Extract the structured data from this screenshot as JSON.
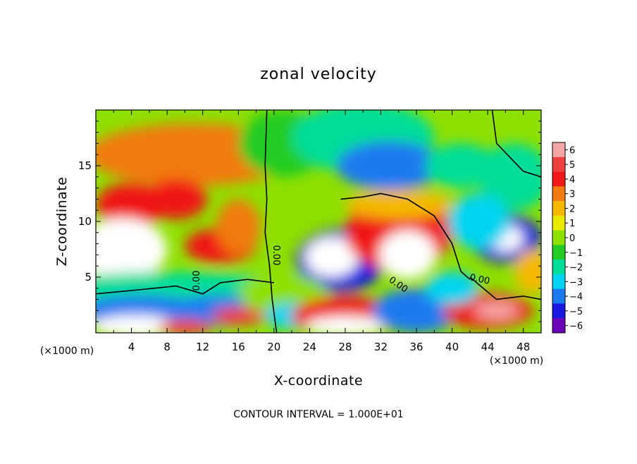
{
  "chart_data": {
    "type": "heatmap",
    "title": "zonal velocity",
    "xlabel": "X-coordinate",
    "ylabel": "Z-coordinate",
    "x_unit_label": "(×1000 m)",
    "x_unit_label_right": "(×1000 m)",
    "footer": "CONTOUR INTERVAL = 1.000E+01",
    "xlim": [
      0,
      50
    ],
    "ylim": [
      0,
      20
    ],
    "x_ticks": [
      4,
      8,
      12,
      16,
      20,
      24,
      28,
      32,
      36,
      40,
      44,
      48
    ],
    "y_ticks": [
      5,
      10,
      15
    ],
    "colorbar": {
      "ticks": [
        6,
        5,
        4,
        3,
        2,
        1,
        0,
        -1,
        -2,
        -3,
        -4,
        -5,
        -6
      ],
      "colors": [
        "#f4a6a6",
        "#ee4040",
        "#f01818",
        "#f27a10",
        "#f5b800",
        "#eaea00",
        "#8ee000",
        "#22cc22",
        "#00dd99",
        "#00d4f0",
        "#1a7af0",
        "#1818e0",
        "#6a00b8"
      ]
    },
    "contour_labels": [
      "0.00",
      "0.00",
      "0.00",
      "0.00"
    ],
    "blobs": [
      {
        "x": 11.0,
        "y": 16.0,
        "rx": 12,
        "ry": 2.8,
        "v": 3.3
      },
      {
        "x": 4.0,
        "y": 11.5,
        "rx": 4,
        "ry": 2,
        "v": 4.5
      },
      {
        "x": 9.0,
        "y": 12.0,
        "rx": 3.5,
        "ry": 1.8,
        "v": 3.8
      },
      {
        "x": 3.0,
        "y": 7.5,
        "rx": 5,
        "ry": 2.8,
        "v": 6.8
      },
      {
        "x": 14.0,
        "y": 7.8,
        "rx": 4,
        "ry": 1.6,
        "v": 3.8
      },
      {
        "x": 16.0,
        "y": 9.5,
        "rx": 2.5,
        "ry": 2.5,
        "v": 2.8
      },
      {
        "x": 21.0,
        "y": 17.0,
        "rx": 5,
        "ry": 3,
        "v": -1.0
      },
      {
        "x": 30.0,
        "y": 17.5,
        "rx": 8,
        "ry": 3.2,
        "v": -2.2
      },
      {
        "x": 33.0,
        "y": 15.0,
        "rx": 6,
        "ry": 2.2,
        "v": -3.8
      },
      {
        "x": 41.0,
        "y": 15.0,
        "rx": 4,
        "ry": 2,
        "v": -2.0
      },
      {
        "x": 47.0,
        "y": 14.0,
        "rx": 4,
        "ry": 3,
        "v": -1.8
      },
      {
        "x": 27.5,
        "y": 6.5,
        "rx": 5,
        "ry": 2.8,
        "v": -4.8
      },
      {
        "x": 26.5,
        "y": 6.8,
        "rx": 3,
        "ry": 1.8,
        "v": 7.5
      },
      {
        "x": 34.0,
        "y": 9.0,
        "rx": 6,
        "ry": 3.5,
        "v": 4.5
      },
      {
        "x": 35.0,
        "y": 7.0,
        "rx": 3.2,
        "ry": 2.2,
        "v": 7.5
      },
      {
        "x": 34.0,
        "y": 11.5,
        "rx": 6,
        "ry": 1.3,
        "v": 1.6
      },
      {
        "x": 46.0,
        "y": 8.5,
        "rx": 4,
        "ry": 2.2,
        "v": -4.8
      },
      {
        "x": 46.0,
        "y": 8.5,
        "rx": 2,
        "ry": 1.2,
        "v": 7.5
      },
      {
        "x": 43.0,
        "y": 10.0,
        "rx": 3.5,
        "ry": 2.5,
        "v": -2.5
      },
      {
        "x": 9.0,
        "y": 4.0,
        "rx": 14,
        "ry": 1.5,
        "v": -1.8
      },
      {
        "x": 5.0,
        "y": 2.0,
        "rx": 7,
        "ry": 1.4,
        "v": -4.2
      },
      {
        "x": 4.5,
        "y": 0.6,
        "rx": 5,
        "ry": 1,
        "v": 7.5
      },
      {
        "x": 14.0,
        "y": 2.0,
        "rx": 6,
        "ry": 1.4,
        "v": -3.6
      },
      {
        "x": 16.0,
        "y": 1.5,
        "rx": 3,
        "ry": 0.8,
        "v": 5.5
      },
      {
        "x": 10.0,
        "y": 0.5,
        "rx": 3,
        "ry": 0.7,
        "v": 5.0
      },
      {
        "x": 21.0,
        "y": 3.5,
        "rx": 5,
        "ry": 1.8,
        "v": 0.5
      },
      {
        "x": 22.0,
        "y": 1.5,
        "rx": 3,
        "ry": 1.2,
        "v": -3.0
      },
      {
        "x": 28.0,
        "y": 1.5,
        "rx": 6,
        "ry": 1.8,
        "v": 4.5
      },
      {
        "x": 28.0,
        "y": 0.6,
        "rx": 4.5,
        "ry": 0.9,
        "v": 7.5
      },
      {
        "x": 36.0,
        "y": 2.0,
        "rx": 5,
        "ry": 2,
        "v": -4.0
      },
      {
        "x": 44.0,
        "y": 2.0,
        "rx": 5,
        "ry": 1.6,
        "v": 4.0
      },
      {
        "x": 45.0,
        "y": 2.0,
        "rx": 2.5,
        "ry": 0.8,
        "v": 6.5
      },
      {
        "x": 49.0,
        "y": 5.5,
        "rx": 2,
        "ry": 2,
        "v": 2.0
      },
      {
        "x": 40.0,
        "y": 4.0,
        "rx": 3,
        "ry": 1.5,
        "v": -2.5
      }
    ],
    "zero_contours": [
      [
        [
          19.2,
          20
        ],
        [
          19.0,
          15
        ],
        [
          19.2,
          12
        ],
        [
          19.0,
          9
        ],
        [
          19.5,
          6
        ],
        [
          19.8,
          3
        ],
        [
          20.3,
          0
        ]
      ],
      [
        [
          0,
          3.5
        ],
        [
          4,
          3.8
        ],
        [
          9,
          4.2
        ],
        [
          12,
          3.5
        ],
        [
          14,
          4.5
        ],
        [
          17,
          4.8
        ],
        [
          20,
          4.5
        ]
      ],
      [
        [
          27.5,
          12
        ],
        [
          30,
          12.2
        ],
        [
          32,
          12.5
        ],
        [
          35,
          12
        ],
        [
          38,
          10.5
        ],
        [
          40,
          8
        ],
        [
          41,
          5.5
        ],
        [
          42,
          4.8
        ]
      ],
      [
        [
          44.5,
          20
        ],
        [
          45,
          17
        ],
        [
          48,
          14.5
        ],
        [
          50,
          14
        ]
      ],
      [
        [
          42,
          5
        ],
        [
          45,
          3
        ],
        [
          48,
          3.3
        ],
        [
          50,
          3
        ]
      ]
    ]
  }
}
